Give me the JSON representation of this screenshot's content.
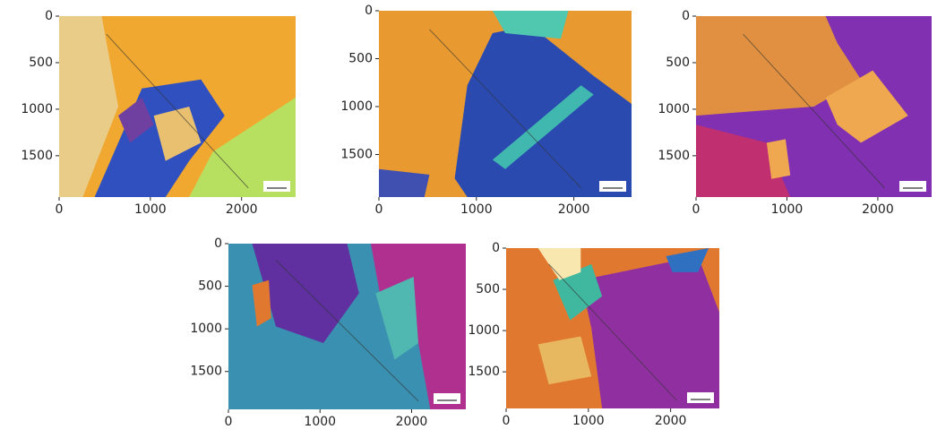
{
  "chart_data": [
    {
      "type": "image",
      "xlim": [
        0,
        2592
      ],
      "ylim": [
        1944,
        0
      ],
      "xticks": [
        0,
        1000,
        2000
      ],
      "yticks": [
        0,
        500,
        1000,
        1500
      ]
    },
    {
      "type": "image",
      "xlim": [
        0,
        2592
      ],
      "ylim": [
        1944,
        0
      ],
      "xticks": [
        0,
        1000,
        2000
      ],
      "yticks": [
        0,
        500,
        1000,
        1500
      ]
    },
    {
      "type": "image",
      "xlim": [
        0,
        2592
      ],
      "ylim": [
        1944,
        0
      ],
      "xticks": [
        0,
        1000,
        2000
      ],
      "yticks": [
        0,
        500,
        1000,
        1500
      ]
    },
    {
      "type": "image",
      "xlim": [
        0,
        2592
      ],
      "ylim": [
        1944,
        0
      ],
      "xticks": [
        0,
        1000,
        2000
      ],
      "yticks": [
        0,
        500,
        1000,
        1500
      ]
    },
    {
      "type": "image",
      "xlim": [
        0,
        2592
      ],
      "ylim": [
        1944,
        0
      ],
      "xticks": [
        0,
        1000,
        2000
      ],
      "yticks": [
        0,
        500,
        1000,
        1500
      ]
    }
  ]
}
